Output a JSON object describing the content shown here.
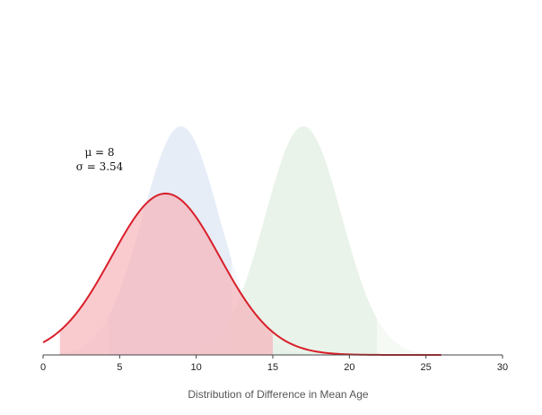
{
  "chart_data": {
    "type": "area",
    "title": "",
    "xlabel": "Distribution of Difference in Mean Age",
    "ylabel": "",
    "xlim": [
      0,
      30
    ],
    "xticks": [
      {
        "value": 0,
        "label": "0"
      },
      {
        "value": 5,
        "label": "5"
      },
      {
        "value": 10,
        "label": "10"
      },
      {
        "value": 15,
        "label": "15"
      },
      {
        "value": 20,
        "label": "20"
      },
      {
        "value": 25,
        "label": "25"
      },
      {
        "value": 30,
        "label": "30"
      }
    ],
    "grid": false,
    "legend": "none",
    "series": [
      {
        "distribution": "normal",
        "mean": 9,
        "sd": 2.5,
        "shade_range": [
          4.3,
          12.3
        ],
        "color": "#dfe8f4",
        "outlined": false
      },
      {
        "distribution": "normal",
        "mean": 17,
        "sd": 2.5,
        "shade_range": [
          12.2,
          21.8
        ],
        "color": "#e2f0e2",
        "outlined": false
      },
      {
        "distribution": "normal",
        "mean": 8,
        "sd": 3.54,
        "curve_range": [
          0,
          26
        ],
        "shade_range": [
          1.1,
          15
        ],
        "color": "#f7b5bb",
        "line_color": "#d81f2a",
        "outlined": true
      }
    ],
    "annotations": [
      {
        "text": "μ = 8"
      },
      {
        "text": "σ = 3.54"
      }
    ]
  }
}
